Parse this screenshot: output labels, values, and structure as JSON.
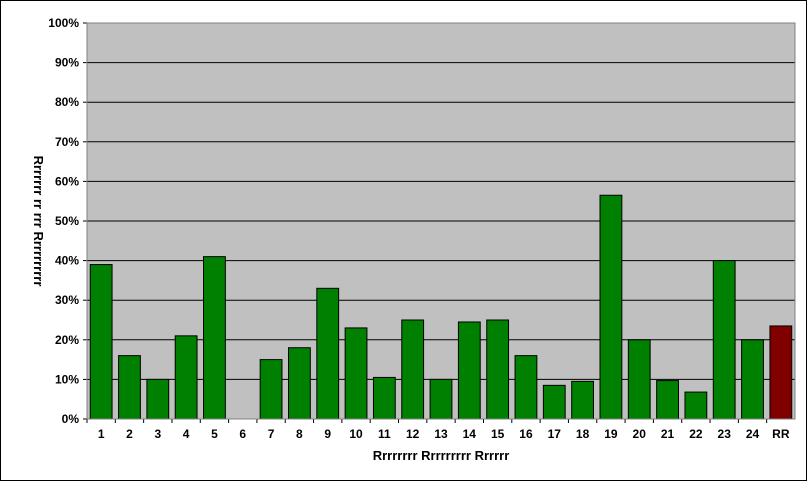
{
  "chart_data": {
    "type": "bar",
    "title": "",
    "xlabel": "Rrrrrrrr Rrrrrrrrr Rrrrrr",
    "ylabel": "Rrrrrrr rr rrr Rrrrrrrrrr",
    "categories": [
      "1",
      "2",
      "3",
      "4",
      "5",
      "6",
      "7",
      "8",
      "9",
      "10",
      "11",
      "12",
      "13",
      "14",
      "15",
      "16",
      "17",
      "18",
      "19",
      "20",
      "21",
      "22",
      "23",
      "24",
      "RR"
    ],
    "values": [
      0.39,
      0.16,
      0.1,
      0.21,
      0.41,
      0.0,
      0.15,
      0.18,
      0.33,
      0.23,
      0.105,
      0.25,
      0.1,
      0.245,
      0.25,
      0.16,
      0.085,
      0.095,
      0.565,
      0.2,
      0.097,
      0.068,
      0.4,
      0.2,
      0.235
    ],
    "ylim": [
      0,
      1
    ],
    "yticks": [
      "0%",
      "10%",
      "20%",
      "30%",
      "40%",
      "50%",
      "60%",
      "70%",
      "80%",
      "90%",
      "100%"
    ],
    "grid": true,
    "legend": "none",
    "colors": {
      "plot_background": "#c0c0c0",
      "bar": "#008000",
      "highlight_bar": "#800000",
      "gridline": "#000000"
    },
    "highlight_category": "RR"
  }
}
